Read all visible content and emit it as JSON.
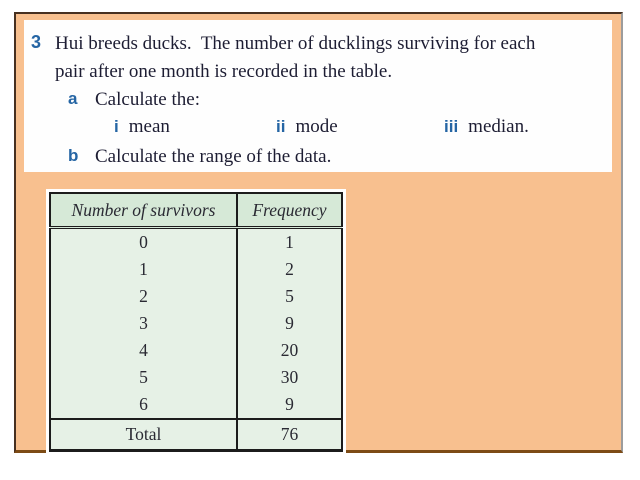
{
  "problem": {
    "number": "3",
    "statement_lines": [
      "Hui breeds ducks.  The number of ducklings surviving for each",
      "pair after one month is recorded in the table."
    ],
    "parts": {
      "a": {
        "label": "a",
        "text": "Calculate the:"
      },
      "subparts": [
        {
          "label": "i",
          "text": "mean"
        },
        {
          "label": "ii",
          "text": "mode"
        },
        {
          "label": "iii",
          "text": "median."
        }
      ],
      "b": {
        "label": "b",
        "text": "Calculate the range of the data."
      }
    }
  },
  "table": {
    "headers": [
      "Number of survivors",
      "Frequency"
    ],
    "rows": [
      [
        "0",
        "1"
      ],
      [
        "1",
        "2"
      ],
      [
        "2",
        "5"
      ],
      [
        "3",
        "9"
      ],
      [
        "4",
        "20"
      ],
      [
        "5",
        "30"
      ],
      [
        "6",
        "9"
      ]
    ],
    "total": {
      "label": "Total",
      "value": "76"
    }
  },
  "colors": {
    "panel_orange": "#f8c08f",
    "panel_border_bottom": "#7d4b15",
    "table_header_green": "#d6e9d7",
    "table_body_green": "#e6f1e6",
    "marker_blue": "#2565a4",
    "text_dark": "#1d1d33"
  }
}
